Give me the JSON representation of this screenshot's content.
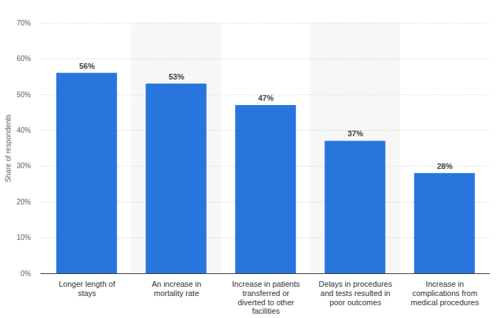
{
  "chart_data": {
    "type": "bar",
    "categories": [
      "Longer length of stays",
      "An increase in mortality rate",
      "Increase in patients transferred or diverted to other facilities",
      "Delays in procedures and tests resulted in poor outcomes",
      "Increase in complications from medical procedures"
    ],
    "values": [
      56,
      53,
      47,
      37,
      28
    ],
    "value_labels": [
      "56%",
      "53%",
      "47%",
      "37%",
      "28%"
    ],
    "color": "#2876dd",
    "ylim": [
      0,
      70
    ],
    "yticks": [
      {
        "value": 0,
        "label": "0%"
      },
      {
        "value": 10,
        "label": "10%"
      },
      {
        "value": 20,
        "label": "20%"
      },
      {
        "value": 30,
        "label": "30%"
      },
      {
        "value": 40,
        "label": "40%"
      },
      {
        "value": 50,
        "label": "50%"
      },
      {
        "value": 60,
        "label": "60%"
      },
      {
        "value": 70,
        "label": "70%"
      }
    ],
    "y_label": "Share of respondents",
    "grid": true,
    "data_labels": true
  }
}
